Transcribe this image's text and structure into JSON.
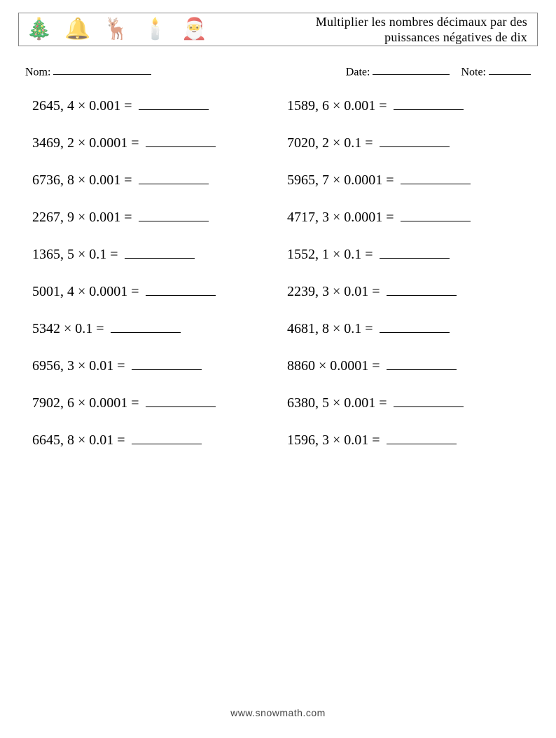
{
  "header": {
    "icons": [
      "🎄",
      "🔔",
      "🦌",
      "🕯️",
      "🎅"
    ],
    "title_line1": "Multiplier les nombres décimaux par des",
    "title_line2": "puissances négatives de dix"
  },
  "meta": {
    "name_label": "Nom:",
    "date_label": "Date:",
    "note_label": "Note:"
  },
  "problems": {
    "left": [
      {
        "expr": "2645, 4 × 0.001 ="
      },
      {
        "expr": "3469, 2 × 0.0001 ="
      },
      {
        "expr": "6736, 8 × 0.001 ="
      },
      {
        "expr": "2267, 9 × 0.001 ="
      },
      {
        "expr": "1365, 5 × 0.1 ="
      },
      {
        "expr": "5001, 4 × 0.0001 ="
      },
      {
        "expr": "5342 × 0.1 ="
      },
      {
        "expr": "6956, 3 × 0.01 ="
      },
      {
        "expr": "7902, 6 × 0.0001 ="
      },
      {
        "expr": "6645, 8 × 0.01 ="
      }
    ],
    "right": [
      {
        "expr": "1589, 6 × 0.001 ="
      },
      {
        "expr": "7020, 2 × 0.1 ="
      },
      {
        "expr": "5965, 7 × 0.0001 ="
      },
      {
        "expr": "4717, 3 × 0.0001 ="
      },
      {
        "expr": "1552, 1 × 0.1 ="
      },
      {
        "expr": "2239, 3 × 0.01 ="
      },
      {
        "expr": "4681, 8 × 0.1 ="
      },
      {
        "expr": "8860 × 0.0001 ="
      },
      {
        "expr": "6380, 5 × 0.001 ="
      },
      {
        "expr": "1596, 3 × 0.01 ="
      }
    ]
  },
  "footer": {
    "text": "www.snowmath.com"
  }
}
